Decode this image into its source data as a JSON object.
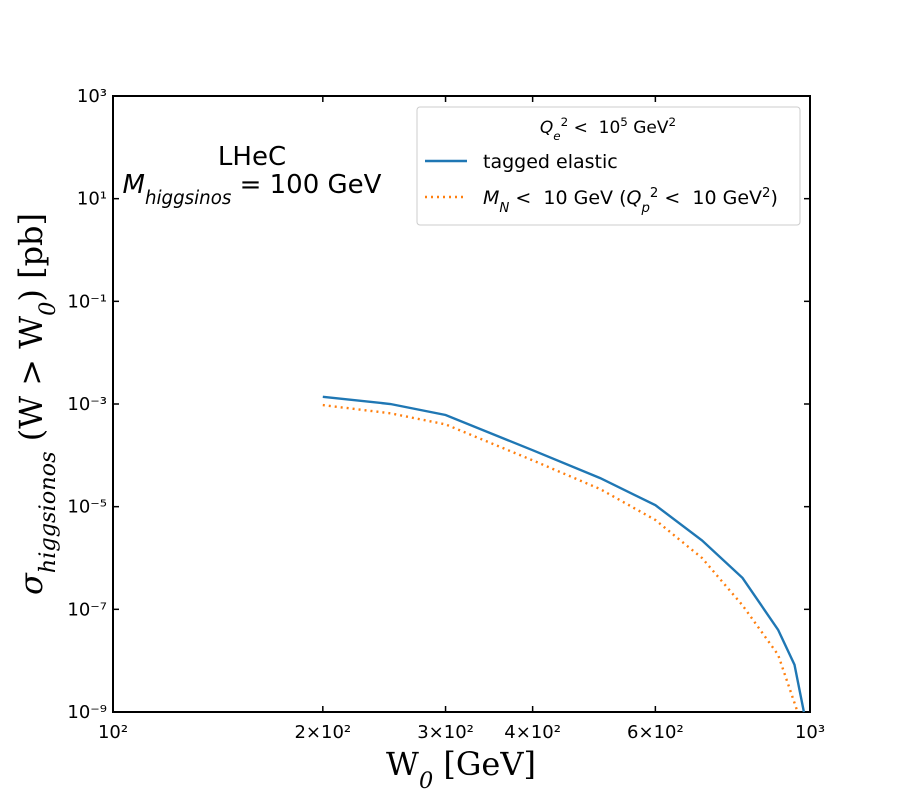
{
  "chart_data": {
    "type": "line",
    "annotation": [
      [
        {
          "text": "LHeC",
          "style": "normal"
        }
      ],
      [
        {
          "text": "M",
          "style": "italic"
        },
        {
          "text": "higgsinos",
          "style": "sub"
        },
        {
          "text": " = 100 GeV",
          "style": "normal"
        }
      ]
    ],
    "x_label": [
      {
        "text": "W",
        "style": "normal"
      },
      {
        "text": "0",
        "style": "sub"
      },
      {
        "text": " [GeV]",
        "style": "normal"
      }
    ],
    "y_label": [
      {
        "text": "σ",
        "style": "italic"
      },
      {
        "text": "higgsionos",
        "style": "sub"
      },
      {
        "text": " (W > W",
        "style": "normal"
      },
      {
        "text": "0",
        "style": "sub"
      },
      {
        "text": ") [pb]",
        "style": "normal"
      }
    ],
    "legend_title": [
      {
        "text": "Q",
        "style": "italic"
      },
      {
        "text": "e",
        "style": "sub"
      },
      {
        "text": "2",
        "style": "sup"
      },
      {
        "text": " <  10",
        "style": "normal"
      },
      {
        "text": "5",
        "style": "sup"
      },
      {
        "text": " GeV",
        "style": "normal"
      },
      {
        "text": "2",
        "style": "sup"
      }
    ],
    "legend": "upper right",
    "x_log": true,
    "y_log": true,
    "xlim": [
      100,
      1000
    ],
    "ylim": [
      1e-09,
      1000
    ],
    "xticks": [
      {
        "value": 100,
        "label": "10²"
      },
      {
        "value": 200,
        "label": "2×10²"
      },
      {
        "value": 300,
        "label": "3×10²"
      },
      {
        "value": 400,
        "label": "4×10²"
      },
      {
        "value": 600,
        "label": "6×10²"
      },
      {
        "value": 1000,
        "label": "10³"
      }
    ],
    "yticks": [
      {
        "value": 1e-09,
        "label": "10⁻⁹"
      },
      {
        "value": 1e-07,
        "label": "10⁻⁷"
      },
      {
        "value": 1e-05,
        "label": "10⁻⁵"
      },
      {
        "value": 0.001,
        "label": "10⁻³"
      },
      {
        "value": 0.1,
        "label": "10⁻¹"
      },
      {
        "value": 10,
        "label": "10¹"
      },
      {
        "value": 1000,
        "label": "10³"
      }
    ],
    "series": [
      {
        "name": [
          {
            "text": "tagged elastic",
            "style": "normal"
          }
        ],
        "color": "#1f77b4",
        "dash": "solid",
        "x": [
          200,
          250,
          300,
          400,
          500,
          600,
          700,
          800,
          900,
          950,
          980
        ],
        "values": [
          0.00138,
          0.001,
          0.00061,
          0.000126,
          3.6e-05,
          1.07e-05,
          2.2e-06,
          4.1e-07,
          4e-08,
          8.3e-09,
          1e-09
        ]
      },
      {
        "name": [
          {
            "text": "M",
            "style": "italic"
          },
          {
            "text": "N",
            "style": "sub"
          },
          {
            "text": " <  10 GeV (",
            "style": "normal"
          },
          {
            "text": "Q",
            "style": "italic"
          },
          {
            "text": "p",
            "style": "sub"
          },
          {
            "text": "2",
            "style": "sup"
          },
          {
            "text": " <  10 GeV",
            "style": "normal"
          },
          {
            "text": "2",
            "style": "sup"
          },
          {
            "text": ")",
            "style": "normal"
          }
        ],
        "color": "#ff7f0e",
        "dash": "dotted",
        "x": [
          200,
          250,
          300,
          400,
          500,
          600,
          700,
          800,
          900,
          960
        ],
        "values": [
          0.00095,
          0.00066,
          0.0004,
          8e-05,
          2.2e-05,
          5.5e-06,
          1e-06,
          1.2e-07,
          1.3e-08,
          1e-09
        ]
      }
    ]
  }
}
